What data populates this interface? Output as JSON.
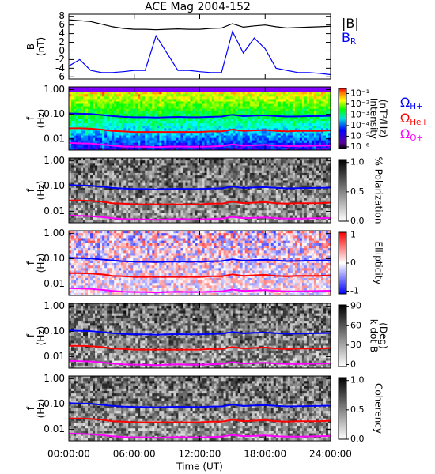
{
  "chart_data": [
    {
      "type": "line",
      "title": "ACE Mag 2004-152",
      "ylabel": [
        "B",
        "(nT)"
      ],
      "x": [
        0,
        1,
        2,
        3,
        4,
        5,
        6,
        7,
        8,
        9,
        10,
        11,
        12,
        13,
        14,
        15,
        16,
        17,
        18,
        19,
        20,
        21,
        22,
        23,
        24
      ],
      "xlim": [
        0,
        24
      ],
      "ylim": [
        -6.5,
        8.5
      ],
      "yticks": [
        -6,
        -4,
        -2,
        0,
        2,
        4,
        6,
        8
      ],
      "series": [
        {
          "name": "|B|",
          "color": "#000000",
          "values": [
            7.2,
            7.0,
            6.8,
            6.2,
            5.6,
            5.2,
            5.0,
            5.0,
            4.9,
            5.0,
            5.1,
            5.0,
            5.0,
            5.2,
            5.3,
            6.3,
            5.5,
            5.8,
            6.0,
            5.6,
            5.3,
            5.4,
            5.5,
            5.6,
            5.7
          ]
        },
        {
          "name": "B",
          "name_subscript": "R",
          "color": "#0000ff",
          "values": [
            -3.5,
            -2.0,
            -4.5,
            -5.0,
            -5.0,
            -4.8,
            -4.5,
            -4.5,
            3.5,
            -0.5,
            -4.5,
            -4.5,
            -4.8,
            -5.0,
            -5.0,
            4.5,
            -0.5,
            3.0,
            0.5,
            -4.0,
            -4.5,
            -5.0,
            -5.0,
            -5.2,
            -5.5
          ]
        }
      ]
    },
    {
      "type": "spectrogram",
      "colormap": "rainbow",
      "ylabel": [
        "f",
        "(Hz)"
      ],
      "log_y": true,
      "ylim": [
        0.0035,
        1.3
      ],
      "yticks": [
        {
          "value": 0.01,
          "label": "0.01"
        },
        {
          "value": 0.1,
          "label": "0.10"
        },
        {
          "value": 1,
          "label": "1.00"
        }
      ],
      "colorbar_label": [
        "Intensity",
        "(nT²/Hz)"
      ],
      "colorbar_log": true,
      "clim": [
        7e-07,
        0.3
      ],
      "colorbar_ticks": [
        {
          "value": 0.1,
          "label": "10⁻¹"
        },
        {
          "value": 0.01,
          "label": "10⁻²"
        },
        {
          "value": 0.001,
          "label": "10⁻³"
        },
        {
          "value": 0.0001,
          "label": "10⁻⁴"
        },
        {
          "value": 1e-05,
          "label": "10⁻⁵"
        },
        {
          "value": 1e-06,
          "label": "10⁻⁶"
        }
      ],
      "series": [
        {
          "name": "Ω",
          "name_subscript": "H+",
          "color": "#0000ff",
          "values": [
            0.109,
            0.106,
            0.103,
            0.094,
            0.085,
            0.079,
            0.076,
            0.076,
            0.074,
            0.076,
            0.078,
            0.076,
            0.076,
            0.079,
            0.081,
            0.096,
            0.084,
            0.088,
            0.091,
            0.085,
            0.081,
            0.082,
            0.084,
            0.085,
            0.087
          ]
        },
        {
          "name": "Ω",
          "name_subscript": "He+",
          "color": "#ff0000",
          "values": [
            0.027,
            0.027,
            0.026,
            0.024,
            0.021,
            0.02,
            0.019,
            0.019,
            0.019,
            0.019,
            0.019,
            0.019,
            0.019,
            0.02,
            0.02,
            0.024,
            0.021,
            0.022,
            0.023,
            0.021,
            0.02,
            0.021,
            0.021,
            0.021,
            0.022
          ]
        },
        {
          "name": "Ω",
          "name_subscript": "O+",
          "color": "#ff00ff",
          "values": [
            0.0068,
            0.0066,
            0.0064,
            0.0059,
            0.0053,
            0.0049,
            0.0048,
            0.0048,
            0.0046,
            0.0048,
            0.0049,
            0.0048,
            0.0048,
            0.0049,
            0.0051,
            0.006,
            0.0053,
            0.0055,
            0.0057,
            0.0053,
            0.0051,
            0.0051,
            0.0052,
            0.0053,
            0.0054
          ]
        }
      ]
    },
    {
      "type": "spectrogram",
      "colormap": "gray",
      "ylabel": [
        "f",
        "(Hz)"
      ],
      "log_y": true,
      "ylim": [
        0.0035,
        1.3
      ],
      "yticks": [
        {
          "value": 0.01,
          "label": "0.01"
        },
        {
          "value": 0.1,
          "label": "0.10"
        },
        {
          "value": 1,
          "label": "1.00"
        }
      ],
      "colorbar_label": [
        "% Polarization"
      ],
      "clim": [
        0,
        1.05
      ],
      "colorbar_ticks": [
        {
          "value": 0,
          "label": "0.0"
        },
        {
          "value": 0.5,
          "label": "0.5"
        },
        {
          "value": 1,
          "label": "1.0"
        }
      ]
    },
    {
      "type": "spectrogram",
      "colormap": "bwr",
      "ylabel": [
        "f",
        "(Hz)"
      ],
      "log_y": true,
      "ylim": [
        0.0035,
        1.3
      ],
      "yticks": [
        {
          "value": 0.01,
          "label": "0.01"
        },
        {
          "value": 0.1,
          "label": "0.10"
        },
        {
          "value": 1,
          "label": "1.00"
        }
      ],
      "colorbar_label": [
        "Ellipticity"
      ],
      "clim": [
        -1.1,
        1.1
      ],
      "colorbar_ticks": [
        -1,
        0,
        1
      ]
    },
    {
      "type": "spectrogram",
      "colormap": "gray",
      "ylabel": [
        "f",
        "(Hz)"
      ],
      "log_y": true,
      "ylim": [
        0.0035,
        1.3
      ],
      "yticks": [
        {
          "value": 0.01,
          "label": "0.01"
        },
        {
          "value": 0.1,
          "label": "0.10"
        },
        {
          "value": 1,
          "label": "1.00"
        }
      ],
      "colorbar_label": [
        "k dot B",
        "(Deg)"
      ],
      "clim": [
        -3,
        92
      ],
      "colorbar_ticks": [
        0,
        30,
        60,
        90
      ]
    },
    {
      "type": "spectrogram",
      "colormap": "gray",
      "ylabel": [
        "f",
        "(Hz)"
      ],
      "log_y": true,
      "ylim": [
        0.0035,
        1.3
      ],
      "yticks": [
        {
          "value": 0.01,
          "label": "0.01"
        },
        {
          "value": 0.1,
          "label": "0.10"
        },
        {
          "value": 1,
          "label": "1.00"
        }
      ],
      "colorbar_label": [
        "Coherency"
      ],
      "clim": [
        0,
        1.05
      ],
      "colorbar_ticks": [
        {
          "value": 0,
          "label": "0.0"
        },
        {
          "value": 0.5,
          "label": "0.5"
        },
        {
          "value": 1,
          "label": "1.0"
        }
      ],
      "xlabel": "Time (UT)",
      "xticks": [
        {
          "value": 0,
          "label": "00:00:00"
        },
        {
          "value": 6,
          "label": "06:00:00"
        },
        {
          "value": 12,
          "label": "12:00:00"
        },
        {
          "value": 18,
          "label": "18:00:00"
        },
        {
          "value": 24,
          "label": "24:00:00"
        }
      ]
    }
  ]
}
